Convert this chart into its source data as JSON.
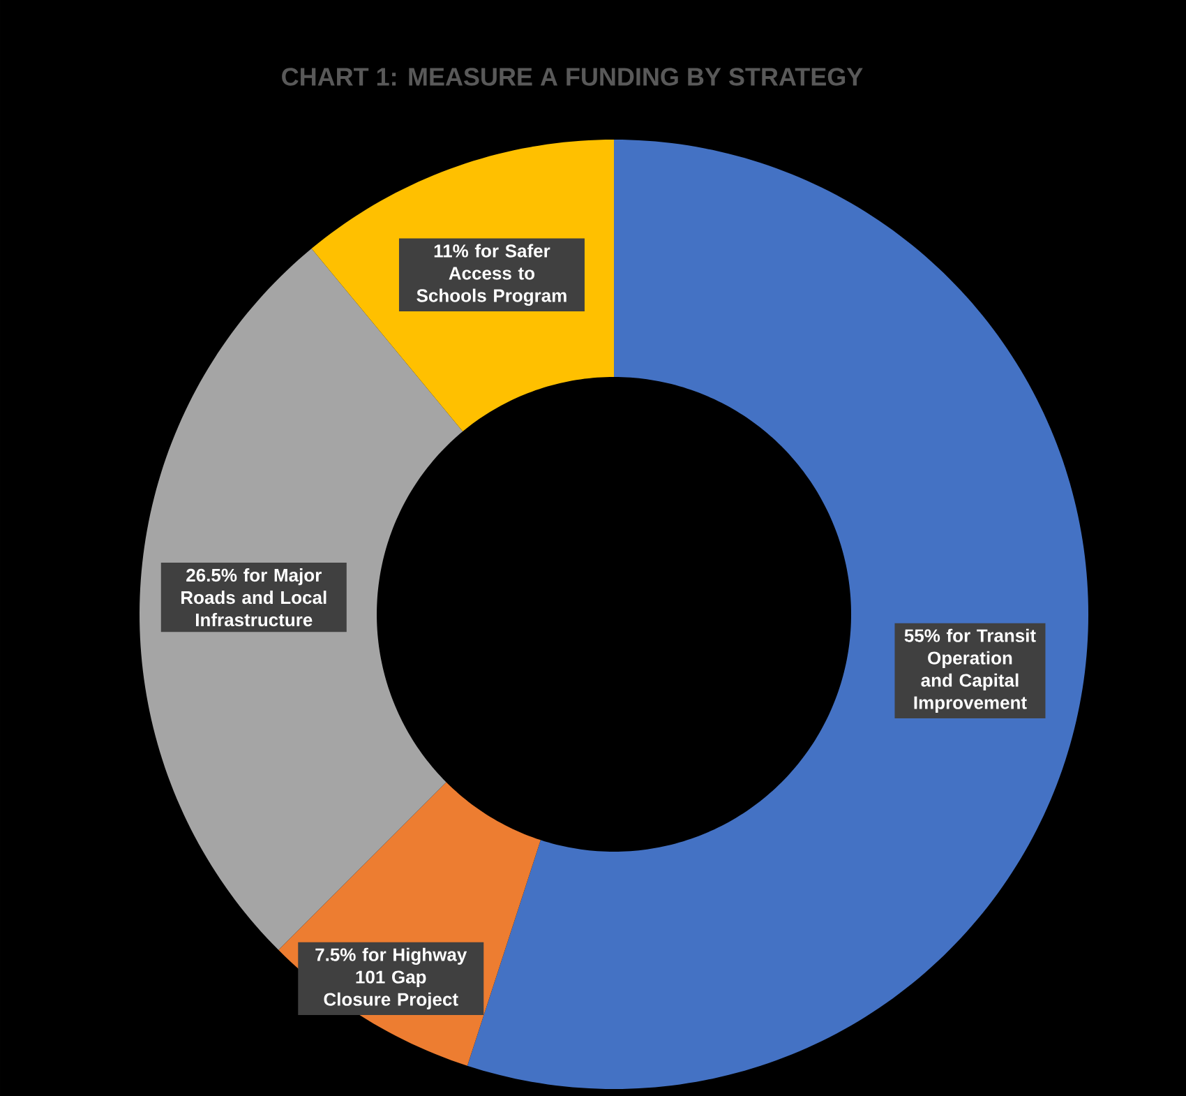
{
  "chart_data": {
    "type": "donut",
    "title": "CHART 1: MEASURE A FUNDING BY STRATEGY",
    "categories": [
      "55% for Transit Operation and Capital Improvement",
      "7.5% for Highway 101 Gap Closure Project",
      "26.5% for Major Roads and Local Infrastructure",
      "11% for Safer Access to Schools Program"
    ],
    "values": [
      55,
      7.5,
      26.5,
      11
    ],
    "colors": [
      "#4472c4",
      "#ed7d31",
      "#a5a5a5",
      "#ffc000"
    ]
  }
}
